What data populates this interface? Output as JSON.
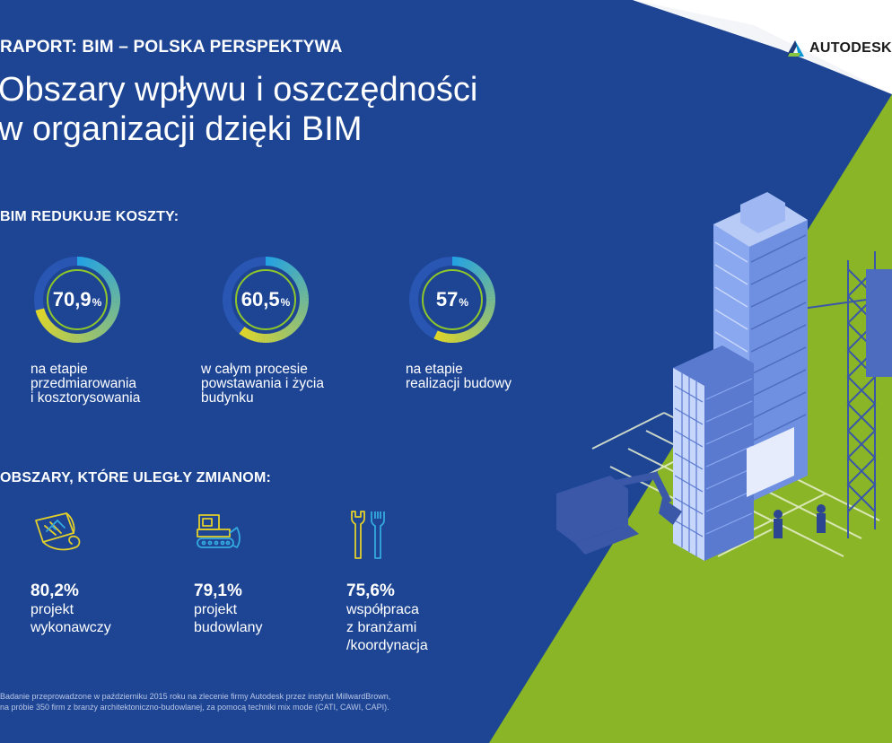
{
  "header": {
    "kicker": "RAPORT: BIM – POLSKA PERSPEKTYWA",
    "title_line1": "Obszary wpływu i oszczędności",
    "title_line2": "w organizacji dzięki BIM",
    "logo_text": "AUTODESK"
  },
  "costs": {
    "heading": "BIM REDUKUJE KOSZTY:",
    "items": [
      {
        "value": "70,9",
        "unit": "%",
        "fraction": 0.709,
        "line1": "na etapie",
        "line2": "przedmiarowania",
        "line3": "i kosztorysowania"
      },
      {
        "value": "60,5",
        "unit": "%",
        "fraction": 0.605,
        "line1": "w całym procesie",
        "line2": "powstawania i życia",
        "line3": "budynku"
      },
      {
        "value": "57",
        "unit": "%",
        "fraction": 0.57,
        "line1": "na etapie",
        "line2": "realizacji budowy",
        "line3": ""
      }
    ]
  },
  "areas": {
    "heading": "OBSZARY, KTÓRE ULEGŁY ZMIANOM:",
    "items": [
      {
        "icon": "blueprint-icon",
        "value": "80,2%",
        "line1": "projekt",
        "line2": "wykonawczy",
        "line3": ""
      },
      {
        "icon": "bulldozer-icon",
        "value": "79,1%",
        "line1": "projekt",
        "line2": "budowlany",
        "line3": ""
      },
      {
        "icon": "wrench-fork-icon",
        "value": "75,6%",
        "line1": "współpraca",
        "line2": "z branżami",
        "line3": "/koordynacja"
      }
    ]
  },
  "footnote": {
    "line1": "Badanie przeprowadzone w październiku 2015 roku na zlecenie firmy Autodesk przez instytut MillwardBrown,",
    "line2": "na próbie 350 firm z branży architektoniczno-budowlanej, za pomocą techniki mix mode (CATI, CAWI, CAPI)."
  },
  "colors": {
    "background_blue": "#1d4594",
    "accent_green": "#8ab526",
    "accent_light_blue": "#34a9e0",
    "accent_yellow": "#e7d21a"
  }
}
